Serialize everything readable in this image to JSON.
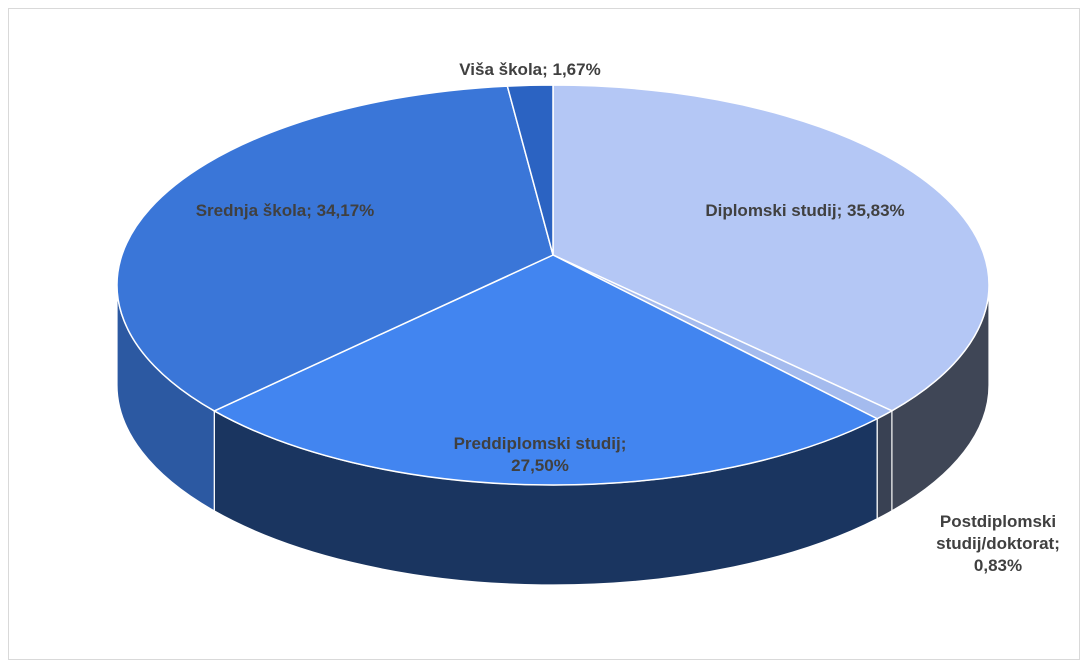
{
  "chart_data": {
    "type": "pie3d",
    "values": [
      35.83,
      0.83,
      27.5,
      34.17,
      1.67
    ],
    "value_labels": [
      "Diplomski studij; 35,83%",
      "Postdiplomski studij/doktorat; 0,83%",
      "Preddiplomski studij; 27,50%",
      "Srednja škola; 34,17%",
      "Viša škola; 1,67%"
    ],
    "colors": [
      "#b4c7f5",
      "#a4bbee",
      "#4285f0",
      "#3a76d8",
      "#2b63c2"
    ]
  }
}
